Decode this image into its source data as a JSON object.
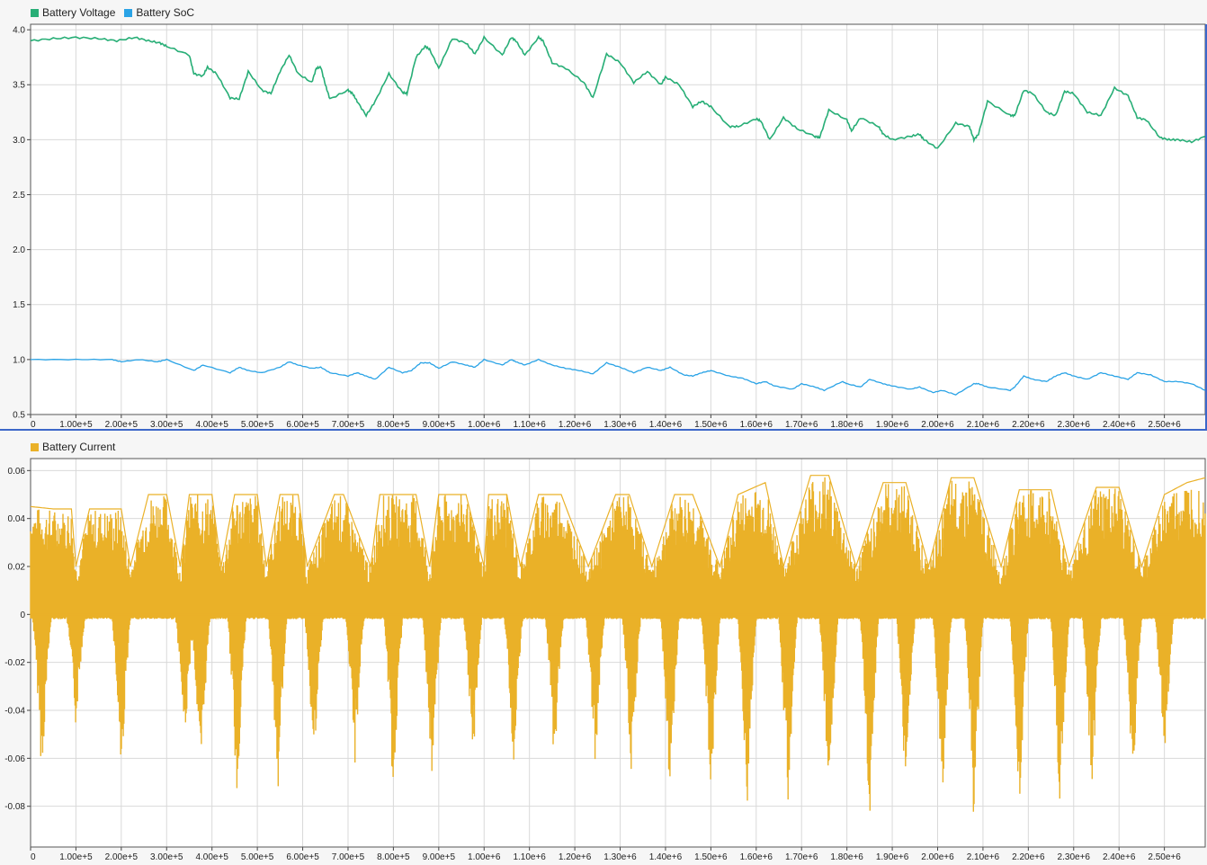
{
  "colors": {
    "voltage": "#27ae76",
    "soc": "#2aa3e6",
    "current": "#eab128",
    "grid": "#d9d9d9",
    "frame": "#3c67c9"
  },
  "chart_data": [
    {
      "type": "line",
      "title": "",
      "legend": "top-left",
      "grid": true,
      "xlim": [
        0,
        2590000
      ],
      "ylim": [
        0.5,
        4.05
      ],
      "x_ticks": [
        "0",
        "1.00e+5",
        "2.00e+5",
        "3.00e+5",
        "4.00e+5",
        "5.00e+5",
        "6.00e+5",
        "7.00e+5",
        "8.00e+5",
        "9.00e+5",
        "1.00e+6",
        "1.10e+6",
        "1.20e+6",
        "1.30e+6",
        "1.40e+6",
        "1.50e+6",
        "1.60e+6",
        "1.70e+6",
        "1.80e+6",
        "1.90e+6",
        "2.00e+6",
        "2.10e+6",
        "2.20e+6",
        "2.30e+6",
        "2.40e+6",
        "2.50e+6"
      ],
      "y_ticks": [
        "0.5",
        "1.0",
        "1.5",
        "2.0",
        "2.5",
        "3.0",
        "3.5",
        "4.0"
      ],
      "series": [
        {
          "name": "Battery  Voltage",
          "x": [
            0,
            50000,
            100000,
            150000,
            190000,
            230000,
            260000,
            285000,
            300000,
            350000,
            360000,
            380000,
            390000,
            410000,
            440000,
            460000,
            480000,
            510000,
            530000,
            550000,
            570000,
            590000,
            620000,
            630000,
            640000,
            650000,
            660000,
            700000,
            710000,
            720000,
            740000,
            760000,
            790000,
            820000,
            830000,
            850000,
            870000,
            880000,
            900000,
            930000,
            960000,
            980000,
            1000000,
            1040000,
            1060000,
            1070000,
            1090000,
            1120000,
            1130000,
            1150000,
            1180000,
            1220000,
            1240000,
            1270000,
            1300000,
            1330000,
            1360000,
            1390000,
            1400000,
            1430000,
            1460000,
            1480000,
            1500000,
            1540000,
            1560000,
            1600000,
            1610000,
            1630000,
            1660000,
            1690000,
            1730000,
            1740000,
            1760000,
            1800000,
            1810000,
            1830000,
            1870000,
            1880000,
            1900000,
            1940000,
            1960000,
            1970000,
            2000000,
            2040000,
            2070000,
            2080000,
            2090000,
            2110000,
            2160000,
            2170000,
            2190000,
            2210000,
            2240000,
            2260000,
            2280000,
            2300000,
            2330000,
            2360000,
            2390000,
            2420000,
            2440000,
            2460000,
            2490000,
            2510000,
            2530000,
            2560000,
            2590000
          ],
          "values": [
            3.9,
            3.92,
            3.93,
            3.92,
            3.9,
            3.93,
            3.9,
            3.88,
            3.85,
            3.77,
            3.6,
            3.58,
            3.66,
            3.6,
            3.38,
            3.37,
            3.62,
            3.45,
            3.42,
            3.62,
            3.77,
            3.6,
            3.52,
            3.65,
            3.66,
            3.5,
            3.37,
            3.45,
            3.42,
            3.35,
            3.22,
            3.35,
            3.6,
            3.43,
            3.42,
            3.75,
            3.85,
            3.82,
            3.65,
            3.92,
            3.88,
            3.78,
            3.93,
            3.77,
            3.93,
            3.9,
            3.77,
            3.93,
            3.9,
            3.7,
            3.65,
            3.52,
            3.38,
            3.78,
            3.7,
            3.52,
            3.62,
            3.5,
            3.57,
            3.5,
            3.3,
            3.35,
            3.3,
            3.12,
            3.12,
            3.19,
            3.17,
            3.0,
            3.2,
            3.1,
            3.03,
            3.02,
            3.27,
            3.18,
            3.08,
            3.2,
            3.12,
            3.05,
            3.0,
            3.03,
            3.05,
            3.0,
            2.92,
            3.15,
            3.12,
            3.0,
            3.05,
            3.35,
            3.22,
            3.22,
            3.45,
            3.42,
            3.25,
            3.22,
            3.44,
            3.42,
            3.25,
            3.22,
            3.47,
            3.4,
            3.2,
            3.18,
            3.02,
            3.0,
            3.0,
            2.98,
            3.03
          ],
          "color": "#27ae76"
        },
        {
          "name": "Battery SoC",
          "x": [
            0,
            100000,
            180000,
            200000,
            240000,
            280000,
            300000,
            360000,
            380000,
            440000,
            460000,
            480000,
            510000,
            550000,
            570000,
            590000,
            620000,
            640000,
            660000,
            700000,
            720000,
            740000,
            760000,
            790000,
            820000,
            840000,
            860000,
            880000,
            900000,
            930000,
            960000,
            980000,
            1000000,
            1040000,
            1060000,
            1070000,
            1090000,
            1120000,
            1150000,
            1180000,
            1210000,
            1240000,
            1270000,
            1300000,
            1330000,
            1360000,
            1390000,
            1410000,
            1440000,
            1460000,
            1480000,
            1500000,
            1540000,
            1570000,
            1600000,
            1620000,
            1640000,
            1680000,
            1700000,
            1730000,
            1750000,
            1790000,
            1800000,
            1830000,
            1850000,
            1880000,
            1900000,
            1940000,
            1960000,
            1990000,
            2010000,
            2040000,
            2080000,
            2090000,
            2110000,
            2160000,
            2170000,
            2190000,
            2210000,
            2240000,
            2260000,
            2280000,
            2300000,
            2330000,
            2360000,
            2390000,
            2420000,
            2440000,
            2470000,
            2500000,
            2530000,
            2560000,
            2590000
          ],
          "values": [
            1.0,
            1.0,
            1.0,
            0.98,
            1.0,
            0.98,
            1.0,
            0.9,
            0.95,
            0.88,
            0.93,
            0.9,
            0.88,
            0.93,
            0.98,
            0.95,
            0.92,
            0.93,
            0.88,
            0.85,
            0.88,
            0.85,
            0.82,
            0.93,
            0.88,
            0.9,
            0.97,
            0.97,
            0.92,
            0.98,
            0.95,
            0.93,
            1.0,
            0.95,
            1.0,
            0.98,
            0.95,
            1.0,
            0.95,
            0.92,
            0.9,
            0.87,
            0.97,
            0.93,
            0.88,
            0.93,
            0.9,
            0.93,
            0.86,
            0.85,
            0.88,
            0.9,
            0.85,
            0.83,
            0.78,
            0.8,
            0.76,
            0.73,
            0.78,
            0.75,
            0.72,
            0.8,
            0.78,
            0.75,
            0.82,
            0.78,
            0.76,
            0.73,
            0.75,
            0.7,
            0.72,
            0.68,
            0.78,
            0.78,
            0.75,
            0.72,
            0.75,
            0.85,
            0.82,
            0.8,
            0.85,
            0.88,
            0.85,
            0.82,
            0.88,
            0.85,
            0.82,
            0.88,
            0.86,
            0.8,
            0.8,
            0.78,
            0.72
          ],
          "color": "#2aa3e6"
        }
      ]
    },
    {
      "type": "line",
      "title": "",
      "legend": "top-left",
      "grid": true,
      "xlim": [
        0,
        2590000
      ],
      "ylim": [
        -0.097,
        0.065
      ],
      "x_ticks": [
        "0",
        "1.00e+5",
        "2.00e+5",
        "3.00e+5",
        "4.00e+5",
        "5.00e+5",
        "6.00e+5",
        "7.00e+5",
        "8.00e+5",
        "9.00e+5",
        "1.00e+6",
        "1.10e+6",
        "1.20e+6",
        "1.30e+6",
        "1.40e+6",
        "1.50e+6",
        "1.60e+6",
        "1.70e+6",
        "1.80e+6",
        "1.90e+6",
        "2.00e+6",
        "2.10e+6",
        "2.20e+6",
        "2.30e+6",
        "2.40e+6",
        "2.50e+6"
      ],
      "y_ticks": [
        "-0.08",
        "-0.06",
        "-0.04",
        "-0.02",
        "0",
        "0.02",
        "0.04",
        "0.06"
      ],
      "series": [
        {
          "name": "Battery Current",
          "color": "#eab128",
          "pos_envelope": {
            "x": [
              0,
              50000,
              90000,
              100000,
              130000,
              160000,
              180000,
              200000,
              220000,
              260000,
              300000,
              330000,
              350000,
              400000,
              420000,
              450000,
              500000,
              520000,
              550000,
              590000,
              610000,
              670000,
              690000,
              750000,
              770000,
              850000,
              880000,
              900000,
              960000,
              1000000,
              1010000,
              1050000,
              1080000,
              1120000,
              1170000,
              1230000,
              1290000,
              1320000,
              1370000,
              1420000,
              1460000,
              1520000,
              1560000,
              1620000,
              1660000,
              1720000,
              1760000,
              1820000,
              1880000,
              1930000,
              1980000,
              2030000,
              2080000,
              2140000,
              2180000,
              2250000,
              2290000,
              2350000,
              2400000,
              2450000,
              2500000,
              2550000,
              2590000
            ],
            "values": [
              0.045,
              0.044,
              0.044,
              0.02,
              0.044,
              0.044,
              0.044,
              0.044,
              0.02,
              0.05,
              0.05,
              0.02,
              0.05,
              0.05,
              0.02,
              0.05,
              0.05,
              0.02,
              0.05,
              0.05,
              0.02,
              0.05,
              0.05,
              0.02,
              0.05,
              0.05,
              0.02,
              0.05,
              0.05,
              0.02,
              0.05,
              0.05,
              0.02,
              0.05,
              0.05,
              0.02,
              0.05,
              0.05,
              0.02,
              0.05,
              0.05,
              0.02,
              0.05,
              0.055,
              0.02,
              0.058,
              0.058,
              0.02,
              0.055,
              0.055,
              0.02,
              0.057,
              0.057,
              0.02,
              0.052,
              0.052,
              0.02,
              0.053,
              0.053,
              0.02,
              0.05,
              0.055,
              0.057
            ]
          },
          "neg_spikes": {
            "x": [
              25000,
              100000,
              200000,
              340000,
              375000,
              455000,
              545000,
              625000,
              715000,
              800000,
              885000,
              975000,
              1065000,
              1155000,
              1245000,
              1325000,
              1410000,
              1500000,
              1580000,
              1670000,
              1760000,
              1850000,
              1930000,
              2010000,
              2080000,
              2180000,
              2270000,
              2340000,
              2430000,
              2500000
            ],
            "values": [
              -0.07,
              -0.048,
              -0.07,
              -0.055,
              -0.075,
              -0.08,
              -0.078,
              -0.066,
              -0.065,
              -0.08,
              -0.075,
              -0.065,
              -0.065,
              -0.065,
              -0.07,
              -0.07,
              -0.078,
              -0.08,
              -0.085,
              -0.085,
              -0.09,
              -0.087,
              -0.08,
              -0.085,
              -0.09,
              -0.085,
              -0.085,
              -0.08,
              -0.075,
              -0.065
            ]
          }
        }
      ]
    }
  ]
}
